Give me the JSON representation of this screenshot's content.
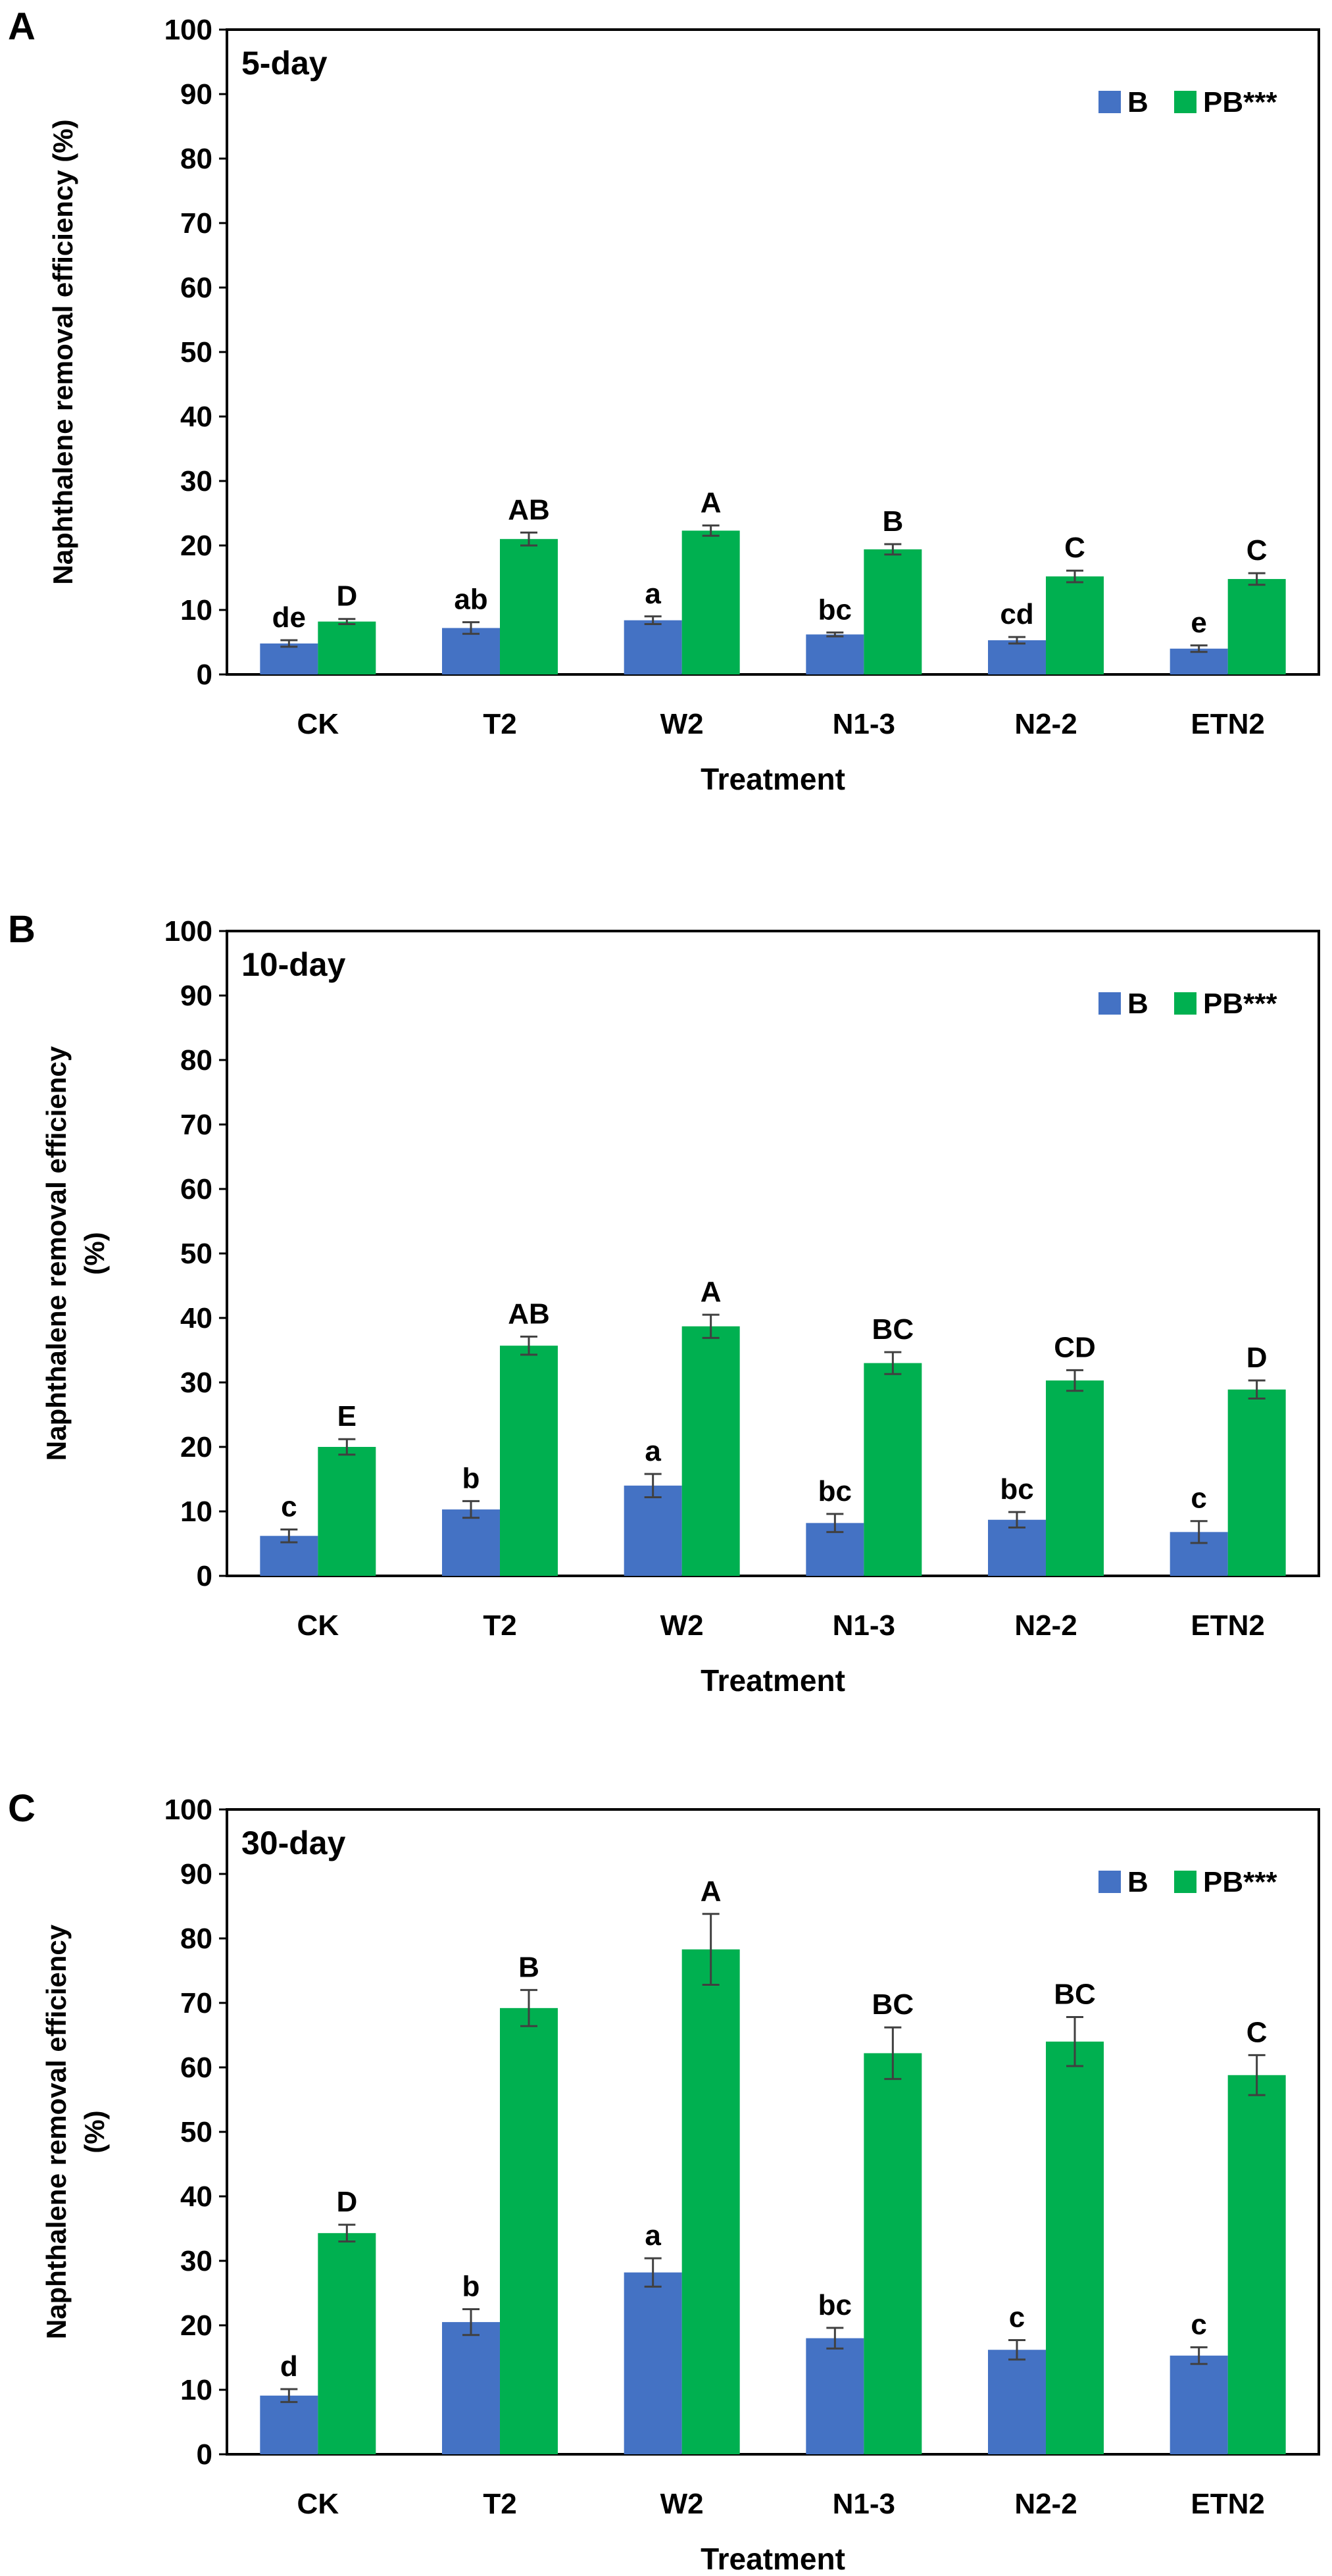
{
  "colors": {
    "b": "#4472C4",
    "pb": "#00B050",
    "axis": "#000000",
    "error": "#404040"
  },
  "chart_data": [
    {
      "type": "bar",
      "panel_label": "A",
      "title": "5-day",
      "xlabel": "Treatment",
      "ylabel_lines": [
        "Naphthalene removal efficiency (%)"
      ],
      "ylim": [
        0,
        100
      ],
      "yticks": [
        0,
        10,
        20,
        30,
        40,
        50,
        60,
        70,
        80,
        90,
        100
      ],
      "legend_position": "top-right",
      "categories": [
        "CK",
        "T2",
        "W2",
        "N1-3",
        "N2-2",
        "ETN2"
      ],
      "series": [
        {
          "name": "B",
          "values": [
            4.8,
            7.2,
            8.4,
            6.2,
            5.3,
            4.0
          ],
          "errors": [
            0.5,
            0.9,
            0.6,
            0.3,
            0.5,
            0.5
          ],
          "labels": [
            "de",
            "ab",
            "a",
            "bc",
            "cd",
            "e"
          ]
        },
        {
          "name": "PB***",
          "values": [
            8.2,
            21.0,
            22.3,
            19.4,
            15.2,
            14.8
          ],
          "errors": [
            0.4,
            1.0,
            0.8,
            0.8,
            0.9,
            0.9
          ],
          "labels": [
            "D",
            "AB",
            "A",
            "B",
            "C",
            "C"
          ]
        }
      ]
    },
    {
      "type": "bar",
      "panel_label": "B",
      "title": "10-day",
      "xlabel": "Treatment",
      "ylabel_lines": [
        "Naphthalene removal efficiency",
        "(%)"
      ],
      "ylim": [
        0,
        100
      ],
      "yticks": [
        0,
        10,
        20,
        30,
        40,
        50,
        60,
        70,
        80,
        90,
        100
      ],
      "legend_position": "top-right",
      "categories": [
        "CK",
        "T2",
        "W2",
        "N1-3",
        "N2-2",
        "ETN2"
      ],
      "series": [
        {
          "name": "B",
          "values": [
            6.2,
            10.3,
            14.0,
            8.2,
            8.7,
            6.8
          ],
          "errors": [
            1.0,
            1.3,
            1.8,
            1.4,
            1.2,
            1.7
          ],
          "labels": [
            "c",
            "b",
            "a",
            "bc",
            "bc",
            "c"
          ]
        },
        {
          "name": "PB***",
          "values": [
            20.0,
            35.7,
            38.7,
            33.0,
            30.3,
            28.9
          ],
          "errors": [
            1.2,
            1.4,
            1.8,
            1.7,
            1.6,
            1.4
          ],
          "labels": [
            "E",
            "AB",
            "A",
            "BC",
            "CD",
            "D"
          ]
        }
      ]
    },
    {
      "type": "bar",
      "panel_label": "C",
      "title": "30-day",
      "xlabel": "Treatment",
      "ylabel_lines": [
        "Naphthalene removal efficiency",
        "(%)"
      ],
      "ylim": [
        0,
        100
      ],
      "yticks": [
        0,
        10,
        20,
        30,
        40,
        50,
        60,
        70,
        80,
        90,
        100
      ],
      "legend_position": "top-right",
      "categories": [
        "CK",
        "T2",
        "W2",
        "N1-3",
        "N2-2",
        "ETN2"
      ],
      "series": [
        {
          "name": "B",
          "values": [
            9.1,
            20.5,
            28.2,
            18.0,
            16.2,
            15.3
          ],
          "errors": [
            1.0,
            2.0,
            2.2,
            1.6,
            1.5,
            1.3
          ],
          "labels": [
            "d",
            "b",
            "a",
            "bc",
            "c",
            "c"
          ]
        },
        {
          "name": "PB***",
          "values": [
            34.3,
            69.2,
            78.3,
            62.2,
            64.0,
            58.8
          ],
          "errors": [
            1.3,
            2.8,
            5.5,
            4.0,
            3.8,
            3.1
          ],
          "labels": [
            "D",
            "B",
            "A",
            "BC",
            "BC",
            "C"
          ]
        }
      ]
    }
  ]
}
